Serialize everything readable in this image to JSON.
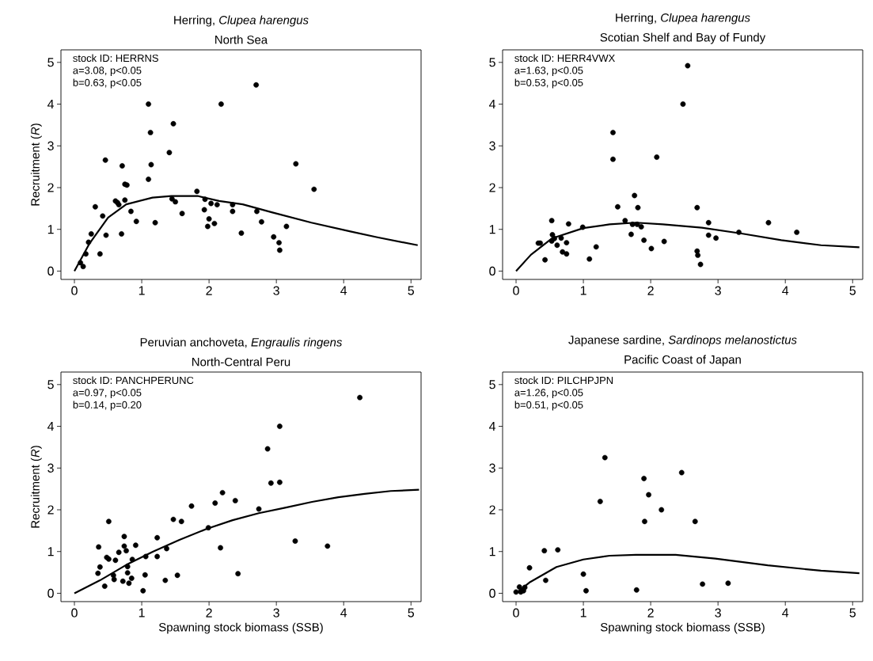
{
  "chart_data": [
    {
      "type": "scatter",
      "title": "Herring, *Clupea harengus*",
      "subtitle": "North Sea",
      "ylabel": "Recruitment (*R*)",
      "annotations": [
        "stock ID: HERRNS",
        "a=3.08, p<0.05",
        "b=0.63, p<0.05"
      ],
      "xlim": [
        -0.2,
        5.15
      ],
      "ylim": [
        -0.2,
        5.3
      ],
      "xticks": [
        0,
        1,
        2,
        3,
        4,
        5
      ],
      "yticks": [
        0,
        1,
        2,
        3,
        4,
        5
      ],
      "marker": "circle",
      "series": [
        {
          "type": "scatter",
          "color": "#000000",
          "x": [
            0.09,
            0.13,
            0.17,
            0.21,
            0.25,
            0.31,
            0.38,
            0.42,
            0.46,
            0.47,
            0.61,
            0.64,
            0.66,
            0.7,
            0.71,
            0.75,
            0.78,
            0.75,
            0.84,
            0.92,
            1.1,
            1.1,
            1.13,
            1.14,
            1.2,
            1.41,
            1.47,
            1.45,
            1.5,
            1.6,
            1.82,
            1.94,
            1.93,
            2.0,
            1.98,
            2.03,
            2.12,
            2.08,
            2.18,
            2.35,
            2.35,
            2.48,
            2.7,
            2.71,
            2.78,
            2.96,
            3.04,
            3.05,
            3.15,
            3.29,
            3.56
          ],
          "values": [
            0.2,
            0.11,
            0.41,
            0.69,
            0.89,
            1.54,
            0.41,
            1.32,
            2.66,
            0.86,
            1.68,
            1.64,
            1.59,
            0.89,
            2.52,
            2.08,
            2.06,
            1.7,
            1.43,
            1.19,
            4.0,
            2.2,
            3.32,
            2.55,
            1.16,
            2.84,
            3.53,
            1.73,
            1.66,
            1.38,
            1.91,
            1.72,
            1.47,
            1.25,
            1.07,
            1.62,
            1.59,
            1.14,
            4.0,
            1.59,
            1.43,
            0.91,
            4.46,
            1.43,
            1.18,
            0.82,
            0.68,
            0.5,
            1.07,
            2.57,
            1.96
          ]
        },
        {
          "type": "line",
          "color": "#000000",
          "marker": "none",
          "x": [
            0,
            0.22,
            0.5,
            0.77,
            1.16,
            1.44,
            1.83,
            2.15,
            2.5,
            2.93,
            3.52,
            4.1,
            4.5,
            5.1
          ],
          "values": [
            0,
            0.65,
            1.28,
            1.6,
            1.76,
            1.8,
            1.8,
            1.68,
            1.6,
            1.41,
            1.16,
            0.95,
            0.81,
            0.62
          ]
        }
      ]
    },
    {
      "type": "scatter",
      "title": "Herring, *Clupea harengus*",
      "subtitle": "Scotian Shelf and Bay of Fundy",
      "annotations": [
        "stock ID: HERR4VWX",
        "a=1.63, p<0.05",
        "b=0.53, p<0.05"
      ],
      "xlim": [
        -0.2,
        5.15
      ],
      "ylim": [
        -0.2,
        5.3
      ],
      "xticks": [
        0,
        1,
        2,
        3,
        4,
        5
      ],
      "yticks": [
        0,
        1,
        2,
        3,
        4,
        5
      ],
      "marker": "circle",
      "series": [
        {
          "type": "scatter",
          "color": "#000000",
          "x": [
            0.33,
            0.36,
            0.43,
            0.53,
            0.54,
            0.53,
            0.57,
            0.61,
            0.67,
            0.69,
            0.75,
            0.75,
            0.78,
            0.99,
            1.09,
            1.19,
            1.44,
            1.44,
            1.51,
            1.62,
            1.71,
            1.73,
            1.76,
            1.8,
            1.81,
            1.86,
            1.9,
            2.01,
            2.09,
            2.2,
            2.48,
            2.55,
            2.69,
            2.69,
            2.7,
            2.74,
            2.86,
            2.86,
            2.97,
            3.31,
            3.75,
            4.17
          ],
          "values": [
            0.67,
            0.67,
            0.27,
            1.21,
            0.87,
            0.72,
            0.78,
            0.62,
            0.79,
            0.46,
            0.41,
            0.68,
            1.13,
            1.05,
            0.29,
            0.58,
            3.32,
            2.68,
            1.54,
            1.21,
            0.88,
            1.12,
            1.81,
            1.12,
            1.52,
            1.06,
            0.74,
            0.54,
            2.73,
            0.71,
            4.0,
            4.92,
            1.52,
            0.48,
            0.38,
            0.16,
            1.16,
            0.86,
            0.79,
            0.93,
            1.16,
            0.93
          ]
        },
        {
          "type": "line",
          "color": "#000000",
          "marker": "none",
          "x": [
            0,
            0.22,
            0.53,
            1,
            1.39,
            1.78,
            2.18,
            2.76,
            3.35,
            3.94,
            4.53,
            5.1
          ],
          "values": [
            0,
            0.39,
            0.78,
            1.03,
            1.12,
            1.16,
            1.12,
            1.04,
            0.9,
            0.74,
            0.62,
            0.57
          ]
        }
      ]
    },
    {
      "type": "scatter",
      "title": "Peruvian anchoveta, *Engraulis ringens*",
      "subtitle": "North-Central Peru",
      "xlabel": "Spawning stock biomass (SSB)",
      "ylabel": "Recruitment (*R*)",
      "annotations": [
        "stock ID: PANCHPERUNC",
        "a=0.97, p<0.05",
        "b=0.14, p=0.20"
      ],
      "xlim": [
        -0.2,
        5.15
      ],
      "ylim": [
        -0.2,
        5.3
      ],
      "xticks": [
        0,
        1,
        2,
        3,
        4,
        5
      ],
      "yticks": [
        0,
        1,
        2,
        3,
        4,
        5
      ],
      "marker": "circle",
      "series": [
        {
          "type": "scatter",
          "color": "#000000",
          "x": [
            0.36,
            0.38,
            0.35,
            0.45,
            0.48,
            0.51,
            0.51,
            0.58,
            0.59,
            0.61,
            0.66,
            0.72,
            0.74,
            0.74,
            0.77,
            0.79,
            0.79,
            0.81,
            0.85,
            0.86,
            0.91,
            1.02,
            1.05,
            1.06,
            1.23,
            1.23,
            1.35,
            1.37,
            1.47,
            1.53,
            1.59,
            1.74,
            1.99,
            2.09,
            2.17,
            2.2,
            2.39,
            2.43,
            2.74,
            2.87,
            2.92,
            3.05,
            3.05,
            3.28,
            3.76,
            4.24
          ],
          "values": [
            1.11,
            0.63,
            0.48,
            0.17,
            0.86,
            0.82,
            1.72,
            0.43,
            0.33,
            0.79,
            0.98,
            0.29,
            1.36,
            1.13,
            1.02,
            0.64,
            0.49,
            0.24,
            0.36,
            0.81,
            1.15,
            0.06,
            0.44,
            0.88,
            1.33,
            0.88,
            0.31,
            1.07,
            1.77,
            0.43,
            1.72,
            2.09,
            1.57,
            2.16,
            1.09,
            2.41,
            2.22,
            0.47,
            2.02,
            3.46,
            2.64,
            2.66,
            4.0,
            1.25,
            1.13,
            4.69
          ]
        },
        {
          "type": "line",
          "color": "#000000",
          "marker": "none",
          "x": [
            0,
            0.38,
            0.77,
            1.17,
            1.56,
            1.96,
            2.35,
            2.74,
            3.13,
            3.53,
            3.92,
            4.31,
            4.7,
            5.12
          ],
          "values": [
            0,
            0.31,
            0.68,
            1.0,
            1.28,
            1.54,
            1.75,
            1.92,
            2.05,
            2.19,
            2.3,
            2.38,
            2.45,
            2.48
          ]
        }
      ]
    },
    {
      "type": "scatter",
      "title": "Japanese sardine, *Sardinops melanostictus*",
      "subtitle": "Pacific Coast of Japan",
      "xlabel": "Spawning stock biomass (SSB)",
      "annotations": [
        "stock ID: PILCHPJPN",
        "a=1.26, p<0.05",
        "b=0.51, p<0.05"
      ],
      "xlim": [
        -0.2,
        5.15
      ],
      "ylim": [
        -0.2,
        5.3
      ],
      "xticks": [
        0,
        1,
        2,
        3,
        4,
        5
      ],
      "yticks": [
        0,
        1,
        2,
        3,
        4,
        5
      ],
      "marker": "circle",
      "series": [
        {
          "type": "scatter",
          "color": "#000000",
          "x": [
            0.0,
            0.05,
            0.07,
            0.11,
            0.13,
            0.2,
            0.42,
            0.44,
            0.62,
            1.0,
            1.04,
            1.25,
            1.32,
            1.79,
            1.9,
            1.91,
            1.97,
            2.16,
            2.46,
            2.66,
            2.77,
            3.15
          ],
          "values": [
            0.03,
            0.15,
            0.03,
            0.06,
            0.14,
            0.61,
            1.02,
            0.31,
            1.04,
            0.46,
            0.06,
            2.2,
            3.25,
            0.08,
            2.75,
            1.72,
            2.36,
            2.0,
            2.89,
            1.72,
            0.22,
            0.24
          ]
        },
        {
          "type": "line",
          "color": "#000000",
          "marker": "none",
          "x": [
            0,
            0.21,
            0.6,
            1,
            1.39,
            1.78,
            2.37,
            2.96,
            3.74,
            4.53,
            5.1
          ],
          "values": [
            0,
            0.27,
            0.63,
            0.81,
            0.9,
            0.92,
            0.92,
            0.83,
            0.67,
            0.54,
            0.48
          ]
        }
      ]
    }
  ]
}
